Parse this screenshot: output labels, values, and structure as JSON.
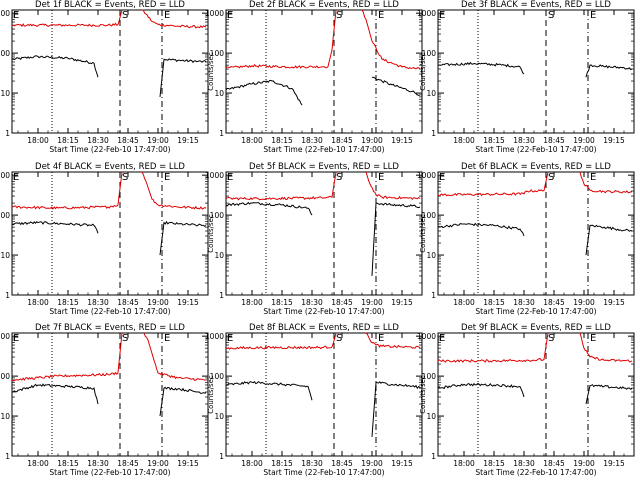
{
  "figure": {
    "title_template": "Det {d} BLACK = Events, RED = LLD",
    "xlabel": "Start Time (22-Feb-10 17:47:00)",
    "ylabel": "Counts/sec",
    "xticks": [
      "18:00",
      "18:15",
      "18:30",
      "18:45",
      "19:00",
      "19:15"
    ],
    "yticks": [
      "1",
      "10",
      "100",
      "1000"
    ],
    "markers": [
      "E",
      "S",
      "E"
    ],
    "colors": {
      "events": "#000000",
      "lld": "#e00000"
    }
  },
  "chart_data": [
    {
      "type": "line",
      "title": "Det 1f BLACK = Events, RED = LLD",
      "xlabel": "Start Time (22-Feb-10 17:47:00)",
      "ylabel": "Counts/sec",
      "yscale": "log",
      "ylim": [
        1,
        1200
      ],
      "xlim": [
        "17:47",
        "19:25"
      ],
      "markers": [
        {
          "label": "E",
          "time": "17:47",
          "style": "dotted"
        },
        {
          "label": "S",
          "time": "18:41",
          "style": "dashed"
        },
        {
          "label": "E",
          "time": "19:02",
          "style": "dash-dot"
        }
      ],
      "series": [
        {
          "name": "Events",
          "color": "#000000",
          "segments": [
            {
              "x": [
                "17:47",
                "18:00",
                "18:15",
                "18:28",
                "18:30"
              ],
              "y": [
                70,
                82,
                74,
                56,
                25
              ]
            },
            {
              "x": [
                "19:01",
                "19:03",
                "19:10",
                "19:20",
                "19:24"
              ],
              "y": [
                8,
                70,
                66,
                62,
                60
              ]
            }
          ]
        },
        {
          "name": "LLD",
          "color": "#e00000",
          "segments": [
            {
              "x": [
                "17:47",
                "18:10",
                "18:35",
                "18:40",
                "18:42"
              ],
              "y": [
                500,
                500,
                500,
                520,
                1200
              ]
            },
            {
              "x": [
                "18:52",
                "18:54",
                "18:57",
                "19:00",
                "19:10",
                "19:24"
              ],
              "y": [
                1200,
                950,
                620,
                520,
                470,
                450
              ]
            }
          ]
        }
      ]
    },
    {
      "type": "line",
      "title": "Det 2f BLACK = Events, RED = LLD",
      "xlabel": "Start Time (22-Feb-10 17:47:00)",
      "ylabel": "Counts/sec",
      "yscale": "log",
      "ylim": [
        1,
        1200
      ],
      "xlim": [
        "17:47",
        "19:25"
      ],
      "markers": [
        {
          "label": "E",
          "time": "17:47",
          "style": "dotted"
        },
        {
          "label": "S",
          "time": "18:41",
          "style": "dashed"
        },
        {
          "label": "E",
          "time": "19:02",
          "style": "dash-dot"
        }
      ],
      "series": [
        {
          "name": "Events",
          "color": "#000000",
          "segments": [
            {
              "x": [
                "17:47",
                "18:00",
                "18:10",
                "18:20",
                "18:25"
              ],
              "y": [
                12,
                17,
                20,
                13,
                5
              ]
            },
            {
              "x": [
                "19:00",
                "19:10",
                "19:20",
                "19:24"
              ],
              "y": [
                25,
                16,
                11,
                9
              ]
            }
          ]
        },
        {
          "name": "LLD",
          "color": "#e00000",
          "segments": [
            {
              "x": [
                "17:47",
                "18:00",
                "18:20",
                "18:38",
                "18:40",
                "18:42"
              ],
              "y": [
                42,
                48,
                45,
                46,
                120,
                1200
              ]
            },
            {
              "x": [
                "18:55",
                "18:57",
                "19:00",
                "19:05",
                "19:15",
                "19:24"
              ],
              "y": [
                1200,
                700,
                200,
                70,
                45,
                40
              ]
            }
          ]
        }
      ]
    },
    {
      "type": "line",
      "title": "Det 3f BLACK = Events, RED = LLD",
      "xlabel": "Start Time (22-Feb-10 17:47:00)",
      "ylabel": "Counts/sec",
      "yscale": "log",
      "ylim": [
        1,
        1200
      ],
      "xlim": [
        "17:47",
        "19:25"
      ],
      "markers": [
        {
          "label": "E",
          "time": "17:47",
          "style": "dotted"
        },
        {
          "label": "S",
          "time": "18:41",
          "style": "dashed"
        },
        {
          "label": "E",
          "time": "19:02",
          "style": "dash-dot"
        }
      ],
      "series": [
        {
          "name": "Events",
          "color": "#000000",
          "segments": [
            {
              "x": [
                "17:47",
                "18:05",
                "18:20",
                "18:28",
                "18:30"
              ],
              "y": [
                50,
                55,
                50,
                45,
                30
              ]
            },
            {
              "x": [
                "19:01",
                "19:03",
                "19:10",
                "19:20",
                "19:24"
              ],
              "y": [
                25,
                50,
                46,
                43,
                40
              ]
            }
          ]
        }
      ]
    },
    {
      "type": "line",
      "title": "Det 4f BLACK = Events, RED = LLD",
      "xlabel": "Start Time (22-Feb-10 17:47:00)",
      "ylabel": "Counts/sec",
      "yscale": "log",
      "ylim": [
        1,
        1200
      ],
      "xlim": [
        "17:47",
        "19:25"
      ],
      "markers": [
        {
          "label": "E",
          "time": "17:47",
          "style": "dotted"
        },
        {
          "label": "S",
          "time": "18:41",
          "style": "dashed"
        },
        {
          "label": "E",
          "time": "19:02",
          "style": "dash-dot"
        }
      ],
      "series": [
        {
          "name": "Events",
          "color": "#000000",
          "segments": [
            {
              "x": [
                "17:47",
                "18:00",
                "18:15",
                "18:28",
                "18:30"
              ],
              "y": [
                60,
                65,
                60,
                55,
                35
              ]
            },
            {
              "x": [
                "19:01",
                "19:03",
                "19:10",
                "19:20",
                "19:24"
              ],
              "y": [
                10,
                65,
                60,
                56,
                55
              ]
            }
          ]
        },
        {
          "name": "LLD",
          "color": "#e00000",
          "segments": [
            {
              "x": [
                "17:47",
                "18:10",
                "18:35",
                "18:40",
                "18:42"
              ],
              "y": [
                160,
                150,
                160,
                180,
                1200
              ]
            },
            {
              "x": [
                "18:52",
                "18:54",
                "18:57",
                "19:00",
                "19:10",
                "19:24"
              ],
              "y": [
                1200,
                700,
                250,
                180,
                160,
                150
              ]
            }
          ]
        }
      ]
    },
    {
      "type": "line",
      "title": "Det 5f BLACK = Events, RED = LLD",
      "xlabel": "Start Time (22-Feb-10 17:47:00)",
      "ylabel": "Counts/sec",
      "yscale": "log",
      "ylim": [
        1,
        1200
      ],
      "xlim": [
        "17:47",
        "19:25"
      ],
      "markers": [
        {
          "label": "E",
          "time": "17:47",
          "style": "dotted"
        },
        {
          "label": "S",
          "time": "18:41",
          "style": "dashed"
        },
        {
          "label": "E",
          "time": "19:02",
          "style": "dash-dot"
        }
      ],
      "series": [
        {
          "name": "Events",
          "color": "#000000",
          "segments": [
            {
              "x": [
                "17:47",
                "18:00",
                "18:15",
                "18:28",
                "18:30"
              ],
              "y": [
                180,
                200,
                180,
                150,
                100
              ]
            },
            {
              "x": [
                "19:00",
                "19:02",
                "19:10",
                "19:20",
                "19:24"
              ],
              "y": [
                3,
                200,
                180,
                170,
                160
              ]
            }
          ]
        },
        {
          "name": "LLD",
          "color": "#e00000",
          "segments": [
            {
              "x": [
                "17:47",
                "18:10",
                "18:35",
                "18:40",
                "18:42"
              ],
              "y": [
                260,
                260,
                270,
                280,
                1200
              ]
            },
            {
              "x": [
                "18:57",
                "18:59",
                "19:02",
                "19:05",
                "19:15",
                "19:24"
              ],
              "y": [
                1200,
                600,
                320,
                280,
                270,
                260
              ]
            }
          ]
        }
      ]
    },
    {
      "type": "line",
      "title": "Det 6f BLACK = Events, RED = LLD",
      "xlabel": "Start Time (22-Feb-10 17:47:00)",
      "ylabel": "Counts/sec",
      "yscale": "log",
      "ylim": [
        1,
        1200
      ],
      "xlim": [
        "17:47",
        "19:25"
      ],
      "markers": [
        {
          "label": "E",
          "time": "17:47",
          "style": "dotted"
        },
        {
          "label": "S",
          "time": "18:41",
          "style": "dashed"
        },
        {
          "label": "E",
          "time": "19:02",
          "style": "dash-dot"
        }
      ],
      "series": [
        {
          "name": "Events",
          "color": "#000000",
          "segments": [
            {
              "x": [
                "17:47",
                "18:00",
                "18:15",
                "18:28",
                "18:30"
              ],
              "y": [
                50,
                60,
                55,
                45,
                30
              ]
            },
            {
              "x": [
                "19:01",
                "19:03",
                "19:10",
                "19:20",
                "19:24"
              ],
              "y": [
                10,
                55,
                50,
                42,
                40
              ]
            }
          ]
        },
        {
          "name": "LLD",
          "color": "#e00000",
          "segments": [
            {
              "x": [
                "17:47",
                "18:10",
                "18:30",
                "18:31",
                "18:40",
                "18:42"
              ],
              "y": [
                320,
                330,
                340,
                400,
                410,
                1200
              ]
            },
            {
              "x": [
                "18:58",
                "19:00",
                "19:03",
                "19:10",
                "19:24"
              ],
              "y": [
                1200,
                600,
                420,
                390,
                380
              ]
            }
          ]
        }
      ]
    },
    {
      "type": "line",
      "title": "Det 7f BLACK = Events, RED = LLD",
      "xlabel": "Start Time (22-Feb-10 17:47:00)",
      "ylabel": "Counts/sec",
      "yscale": "log",
      "ylim": [
        1,
        1200
      ],
      "xlim": [
        "17:47",
        "19:25"
      ],
      "markers": [
        {
          "label": "E",
          "time": "17:47",
          "style": "dotted"
        },
        {
          "label": "S",
          "time": "18:41",
          "style": "dashed"
        },
        {
          "label": "E",
          "time": "19:02",
          "style": "dash-dot"
        }
      ],
      "series": [
        {
          "name": "Events",
          "color": "#000000",
          "segments": [
            {
              "x": [
                "17:47",
                "18:00",
                "18:15",
                "18:28",
                "18:30"
              ],
              "y": [
                40,
                60,
                55,
                50,
                20
              ]
            },
            {
              "x": [
                "19:01",
                "19:03",
                "19:10",
                "19:20",
                "19:24"
              ],
              "y": [
                10,
                50,
                48,
                40,
                38
              ]
            }
          ]
        },
        {
          "name": "LLD",
          "color": "#e00000",
          "segments": [
            {
              "x": [
                "17:47",
                "18:10",
                "18:35",
                "18:40",
                "18:42"
              ],
              "y": [
                80,
                100,
                110,
                120,
                1200
              ]
            },
            {
              "x": [
                "18:53",
                "18:55",
                "18:58",
                "19:00",
                "19:10",
                "19:24"
              ],
              "y": [
                1200,
                800,
                250,
                120,
                90,
                80
              ]
            }
          ]
        }
      ]
    },
    {
      "type": "line",
      "title": "Det 8f BLACK = Events, RED = LLD",
      "xlabel": "Start Time (22-Feb-10 17:47:00)",
      "ylabel": "Counts/sec",
      "yscale": "log",
      "ylim": [
        1,
        1200
      ],
      "xlim": [
        "17:47",
        "19:25"
      ],
      "markers": [
        {
          "label": "E",
          "time": "17:47",
          "style": "dotted"
        },
        {
          "label": "S",
          "time": "18:41",
          "style": "dashed"
        },
        {
          "label": "E",
          "time": "19:02",
          "style": "dash-dot"
        }
      ],
      "series": [
        {
          "name": "Events",
          "color": "#000000",
          "segments": [
            {
              "x": [
                "17:47",
                "18:00",
                "18:15",
                "18:28",
                "18:30"
              ],
              "y": [
                60,
                70,
                62,
                55,
                25
              ]
            },
            {
              "x": [
                "19:00",
                "19:02",
                "19:10",
                "19:20",
                "19:24"
              ],
              "y": [
                3,
                70,
                62,
                56,
                52
              ]
            }
          ]
        },
        {
          "name": "LLD",
          "color": "#e00000",
          "segments": [
            {
              "x": [
                "17:47",
                "18:10",
                "18:35",
                "18:40",
                "18:42"
              ],
              "y": [
                500,
                520,
                520,
                540,
                1200
              ]
            },
            {
              "x": [
                "18:57",
                "18:59",
                "19:02",
                "19:05",
                "19:15",
                "19:24"
              ],
              "y": [
                1200,
                800,
                600,
                560,
                540,
                520
              ]
            }
          ]
        }
      ]
    },
    {
      "type": "line",
      "title": "Det 9f BLACK = Events, RED = LLD",
      "xlabel": "Start Time (22-Feb-10 17:47:00)",
      "ylabel": "Counts/sec",
      "yscale": "log",
      "ylim": [
        1,
        1200
      ],
      "xlim": [
        "17:47",
        "19:25"
      ],
      "markers": [
        {
          "label": "E",
          "time": "17:47",
          "style": "dotted"
        },
        {
          "label": "S",
          "time": "18:41",
          "style": "dashed"
        },
        {
          "label": "E",
          "time": "19:02",
          "style": "dash-dot"
        }
      ],
      "series": [
        {
          "name": "Events",
          "color": "#000000",
          "segments": [
            {
              "x": [
                "17:47",
                "18:00",
                "18:15",
                "18:28",
                "18:30"
              ],
              "y": [
                50,
                62,
                60,
                55,
                30
              ]
            },
            {
              "x": [
                "19:01",
                "19:03",
                "19:10",
                "19:20",
                "19:24"
              ],
              "y": [
                20,
                58,
                55,
                50,
                48
              ]
            }
          ]
        },
        {
          "name": "LLD",
          "color": "#e00000",
          "segments": [
            {
              "x": [
                "17:47",
                "18:10",
                "18:35",
                "18:40",
                "18:42"
              ],
              "y": [
                240,
                240,
                250,
                260,
                1200
              ]
            },
            {
              "x": [
                "18:58",
                "19:00",
                "19:03",
                "19:10",
                "19:24"
              ],
              "y": [
                1200,
                500,
                300,
                250,
                240
              ]
            }
          ]
        }
      ]
    }
  ]
}
